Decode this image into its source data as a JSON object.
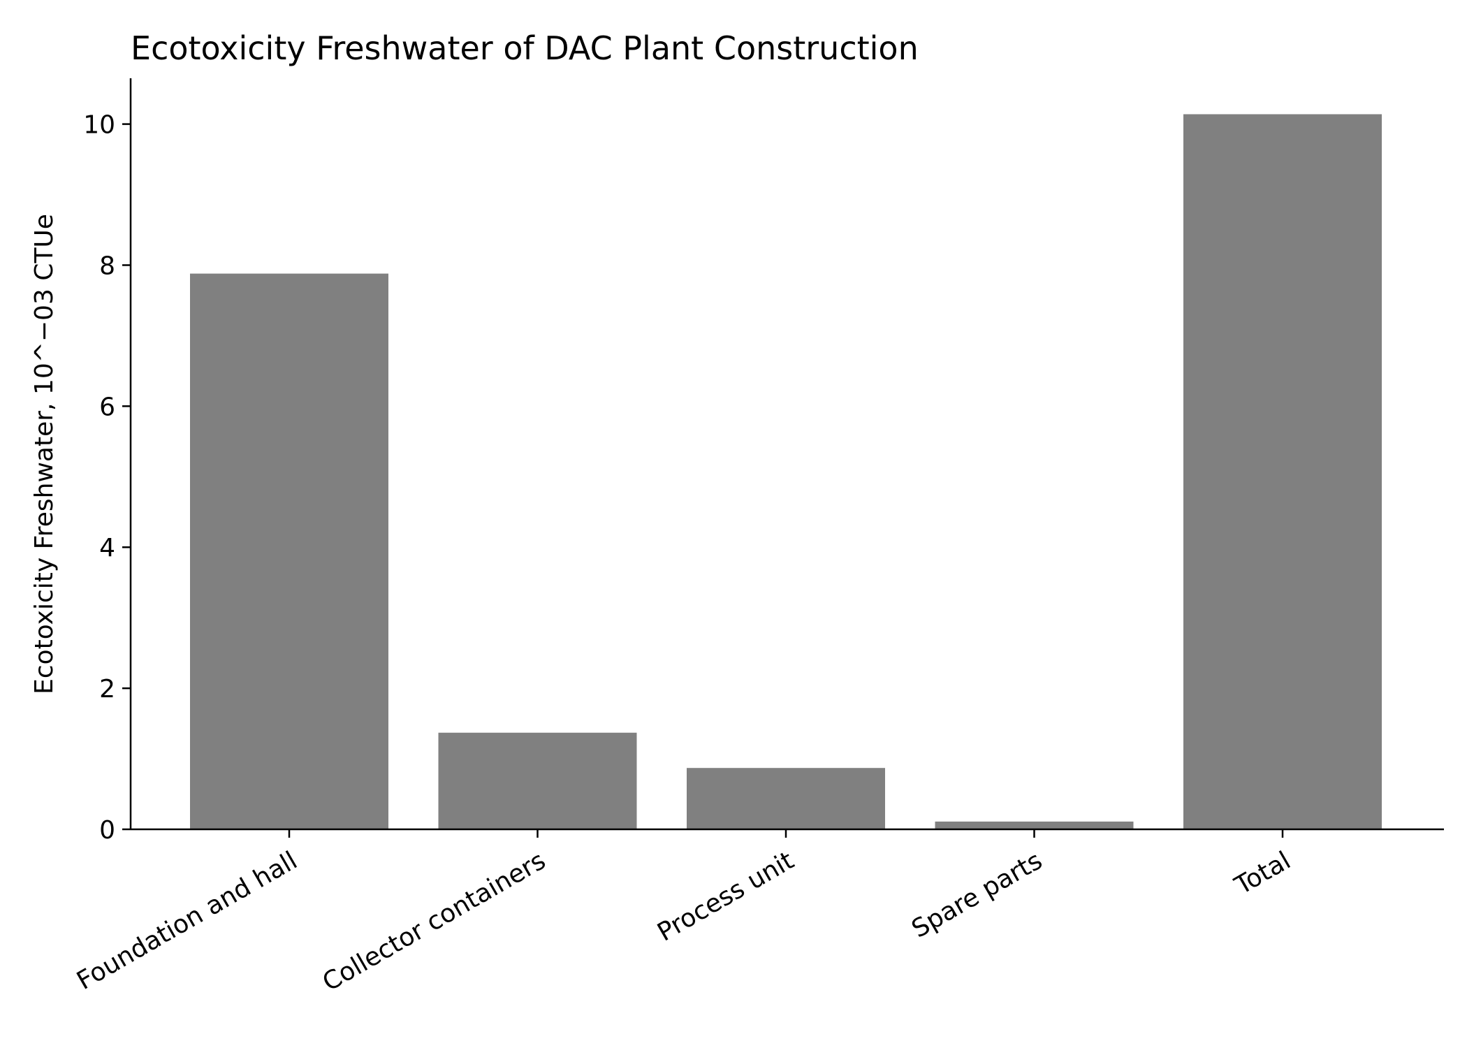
{
  "chart_data": {
    "type": "bar",
    "title": "Ecotoxicity Freshwater of DAC Plant Construction",
    "xlabel": "",
    "ylabel": "Ecotoxicity Freshwater, 10^−03 CTUe",
    "categories": [
      "Foundation and hall",
      "Collector containers",
      "Process unit",
      "Spare parts",
      "Total"
    ],
    "values": [
      7.88,
      1.37,
      0.87,
      0.11,
      10.14
    ],
    "ylim": [
      0,
      10.65
    ],
    "yticks": [
      0,
      2,
      4,
      6,
      8,
      10
    ],
    "bar_color": "#808080",
    "grid": false
  }
}
